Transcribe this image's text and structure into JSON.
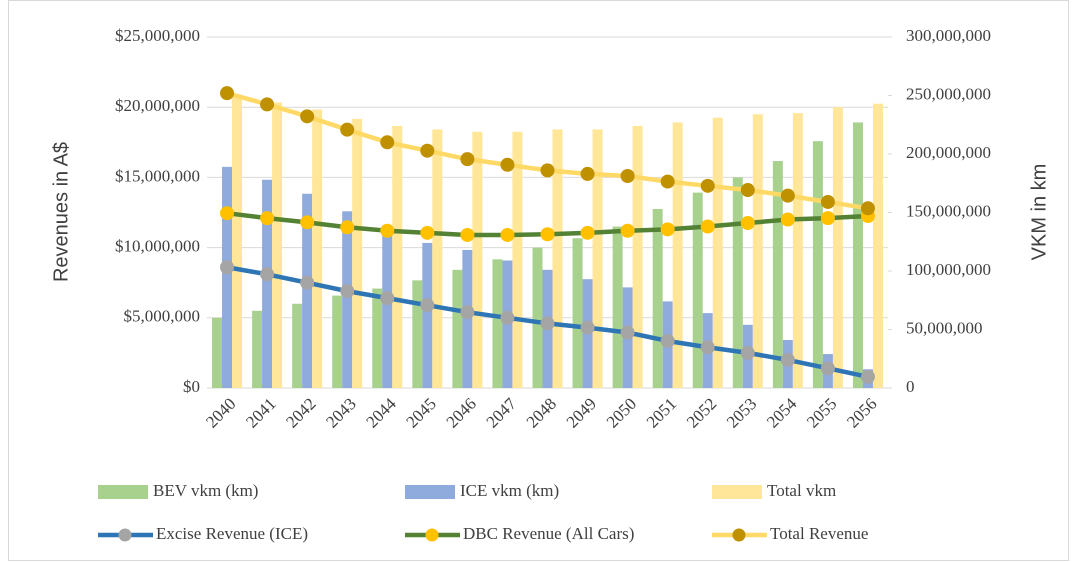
{
  "chart_data": {
    "type": "combo",
    "y_label": "Revenues in A$",
    "y2_label": "VKM in km",
    "categories": [
      "2040",
      "2041",
      "2042",
      "2043",
      "2044",
      "2045",
      "2046",
      "2047",
      "2048",
      "2049",
      "2050",
      "2051",
      "2052",
      "2053",
      "2054",
      "2055",
      "2056"
    ],
    "ylim": [
      0,
      25000000
    ],
    "yticks": [
      {
        "value": 0,
        "label": "$0"
      },
      {
        "value": 5000000,
        "label": "$5,000,000"
      },
      {
        "value": 10000000,
        "label": "$10,000,000"
      },
      {
        "value": 15000000,
        "label": "$15,000,000"
      },
      {
        "value": 20000000,
        "label": "$20,000,000"
      },
      {
        "value": 25000000,
        "label": "$25,000,000"
      }
    ],
    "y2lim": [
      0,
      300000000
    ],
    "y2ticks": [
      0,
      {
        "value": 50000000,
        "label": "50,000,000"
      },
      {
        "value": 100000000,
        "label": "100,000,000"
      },
      {
        "value": 150000000,
        "label": "150,000,000"
      },
      {
        "value": 200000000,
        "label": "200,000,000"
      },
      {
        "value": 250000000,
        "label": "250,000,000"
      },
      {
        "value": 300000000,
        "label": "300,000,000"
      }
    ],
    "grid": true,
    "legend": "bottom",
    "series": [
      {
        "name": "BEV vkm (km)",
        "type": "bar",
        "axis": "y2",
        "color": "#a9d18e",
        "values": [
          60000000,
          66000000,
          72000000,
          79000000,
          85000000,
          92000000,
          101000000,
          110000000,
          120000000,
          128000000,
          138000000,
          153000000,
          167000000,
          180000000,
          194000000,
          211000000,
          227000000
        ]
      },
      {
        "name": "ICE vkm (km)",
        "type": "bar",
        "axis": "y2",
        "color": "#8faadc",
        "values": [
          189000000,
          178000000,
          166000000,
          151000000,
          139000000,
          124000000,
          118000000,
          109000000,
          101000000,
          93000000,
          86000000,
          74000000,
          64000000,
          54000000,
          41000000,
          29000000,
          16000000
        ]
      },
      {
        "name": "Total vkm",
        "type": "bar",
        "axis": "y2",
        "color": "#ffe699",
        "values": [
          249000000,
          244000000,
          238000000,
          230000000,
          224000000,
          221000000,
          219000000,
          219000000,
          221000000,
          221000000,
          224000000,
          227000000,
          231000000,
          234000000,
          235000000,
          240000000,
          243000000
        ]
      },
      {
        "name": "Excise Revenue (ICE)",
        "type": "line",
        "color": "#2e75b6",
        "marker_color": "#a5a5a5",
        "values": [
          8600000,
          8100000,
          7500000,
          6900000,
          6400000,
          5900000,
          5400000,
          5000000,
          4600000,
          4300000,
          3950000,
          3350000,
          2900000,
          2500000,
          2000000,
          1400000,
          800000
        ]
      },
      {
        "name": "DBC Revenue (All Cars)",
        "type": "line",
        "color": "#548235",
        "marker_color": "#ffc000",
        "values": [
          12450000,
          12100000,
          11800000,
          11450000,
          11200000,
          11050000,
          10900000,
          10900000,
          10950000,
          11050000,
          11200000,
          11300000,
          11500000,
          11750000,
          12000000,
          12100000,
          12250000
        ]
      },
      {
        "name": "Total Revenue",
        "type": "line",
        "color": "#ffd966",
        "marker_color": "#bf9000",
        "values": [
          21000000,
          20200000,
          19350000,
          18400000,
          17500000,
          16900000,
          16300000,
          15900000,
          15500000,
          15250000,
          15100000,
          14700000,
          14400000,
          14100000,
          13700000,
          13250000,
          12800000
        ]
      }
    ]
  }
}
